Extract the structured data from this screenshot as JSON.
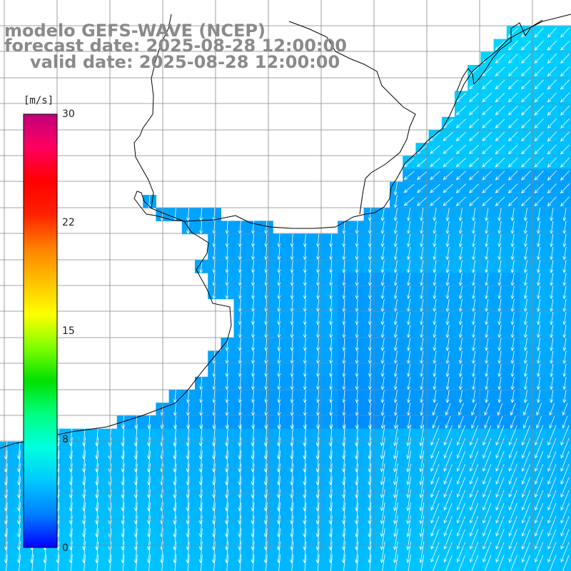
{
  "title": {
    "model": "modelo GEFS-WAVE (NCEP)",
    "forecast": "forecast date: 2025-08-28 12:00:00",
    "valid": "valid date: 2025-08-28 12:00:00"
  },
  "colorbar": {
    "unit": "[m/s]",
    "ticks": [
      "30",
      "22",
      "15",
      "8",
      "0"
    ],
    "tick_values": [
      30,
      22,
      15,
      8,
      0
    ],
    "min": 0,
    "max": 30,
    "colors": [
      "#0000ff",
      "#0080ff",
      "#00c8ff",
      "#00ffe0",
      "#00ff80",
      "#00e000",
      "#80ff00",
      "#ffff00",
      "#ffc000",
      "#ff8000",
      "#ff2000",
      "#ff0000",
      "#ff0060",
      "#c0007a"
    ]
  },
  "field": {
    "wind_speed_range_mps": [
      4,
      8
    ],
    "land_color": "#ffffff",
    "coast_color": "#000000",
    "grid_color": "#808080",
    "arrow_color": "#ffffff"
  }
}
